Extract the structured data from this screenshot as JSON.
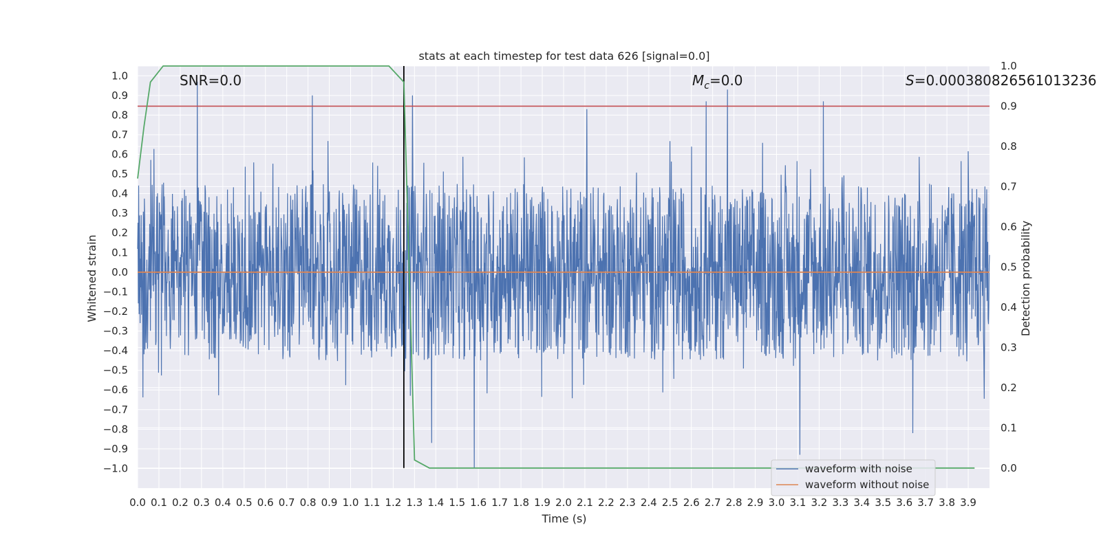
{
  "chart_data": {
    "type": "line",
    "title": "stats at each timestep for test data 626 [signal=0.0]",
    "xlabel": "Time (s)",
    "ylabel": "Whitened strain",
    "y2label": "Detection probability",
    "xlim": [
      0.0,
      4.0
    ],
    "ylim": [
      -1.1,
      1.05
    ],
    "y2lim": [
      -0.05,
      1.0
    ],
    "xticks": [
      "0.0",
      "0.1",
      "0.2",
      "0.3",
      "0.4",
      "0.5",
      "0.6",
      "0.7",
      "0.8",
      "0.9",
      "1.0",
      "1.1",
      "1.2",
      "1.3",
      "1.4",
      "1.5",
      "1.6",
      "1.7",
      "1.8",
      "1.9",
      "2.0",
      "2.1",
      "2.2",
      "2.3",
      "2.4",
      "2.5",
      "2.6",
      "2.7",
      "2.8",
      "2.9",
      "3.0",
      "3.1",
      "3.2",
      "3.3",
      "3.4",
      "3.5",
      "3.6",
      "3.7",
      "3.8",
      "3.9"
    ],
    "yticks": [
      "1.0",
      "0.9",
      "0.8",
      "0.7",
      "0.6",
      "0.5",
      "0.4",
      "0.3",
      "0.2",
      "0.1",
      "0.0",
      "-0.1",
      "-0.2",
      "-0.3",
      "-0.4",
      "-0.5",
      "-0.6",
      "-0.7",
      "-0.8",
      "-0.9",
      "-1.0"
    ],
    "y2ticks": [
      "1.0",
      "0.9",
      "0.8",
      "0.7",
      "0.6",
      "0.5",
      "0.4",
      "0.3",
      "0.2",
      "0.1",
      "0.0"
    ],
    "grid": true,
    "legend_position": "lower-right",
    "annotations": {
      "snr": "SNR=0.0",
      "mc_symbol": "M",
      "mc_sub": "c",
      "mc_value": "=0.0",
      "s_symbol": "S",
      "s_value": "=0.00038082656101323​6"
    },
    "threshold": 0.9,
    "vline_x": 1.25,
    "series": [
      {
        "name": "waveform with noise",
        "color": "#4c72b0",
        "x_range": [
          0.0,
          4.0
        ],
        "amplitude_envelope": {
          "typical_min": -0.45,
          "typical_max": 0.45
        },
        "notable_peaks": [
          {
            "x": 0.28,
            "y": 0.97
          },
          {
            "x": 0.82,
            "y": 0.9
          },
          {
            "x": 1.29,
            "y": 0.9
          },
          {
            "x": 2.11,
            "y": 0.83
          },
          {
            "x": 2.67,
            "y": 0.87
          },
          {
            "x": 2.77,
            "y": 0.93
          },
          {
            "x": 3.22,
            "y": 0.87
          },
          {
            "x": 1.58,
            "y": -1.0
          },
          {
            "x": 3.11,
            "y": -0.93
          },
          {
            "x": 1.38,
            "y": -0.87
          },
          {
            "x": 3.64,
            "y": -0.82
          }
        ]
      },
      {
        "name": "waveform without noise",
        "color": "#dd8452",
        "x": [
          0.0,
          4.0
        ],
        "values": [
          0.0,
          0.0
        ]
      },
      {
        "name": "",
        "color": "#55a868",
        "axis": "secondary",
        "x": [
          0.0,
          0.03,
          0.06,
          0.12,
          0.2,
          0.5,
          0.8,
          1.0,
          1.18,
          1.25,
          1.3,
          1.37,
          1.5,
          2.0,
          3.0,
          3.93
        ],
        "values": [
          0.72,
          0.85,
          0.96,
          1.0,
          1.0,
          1.0,
          1.0,
          1.0,
          1.0,
          0.96,
          0.02,
          0.0,
          0.0,
          0.0,
          0.0,
          0.0
        ]
      }
    ],
    "colors": {
      "noisy": "#4c72b0",
      "clean": "#dd8452",
      "prob": "#55a868",
      "threshold": "#c44e52",
      "vline": "#000000",
      "plot_bg": "#eaeaf2",
      "grid": "#ffffff"
    }
  }
}
